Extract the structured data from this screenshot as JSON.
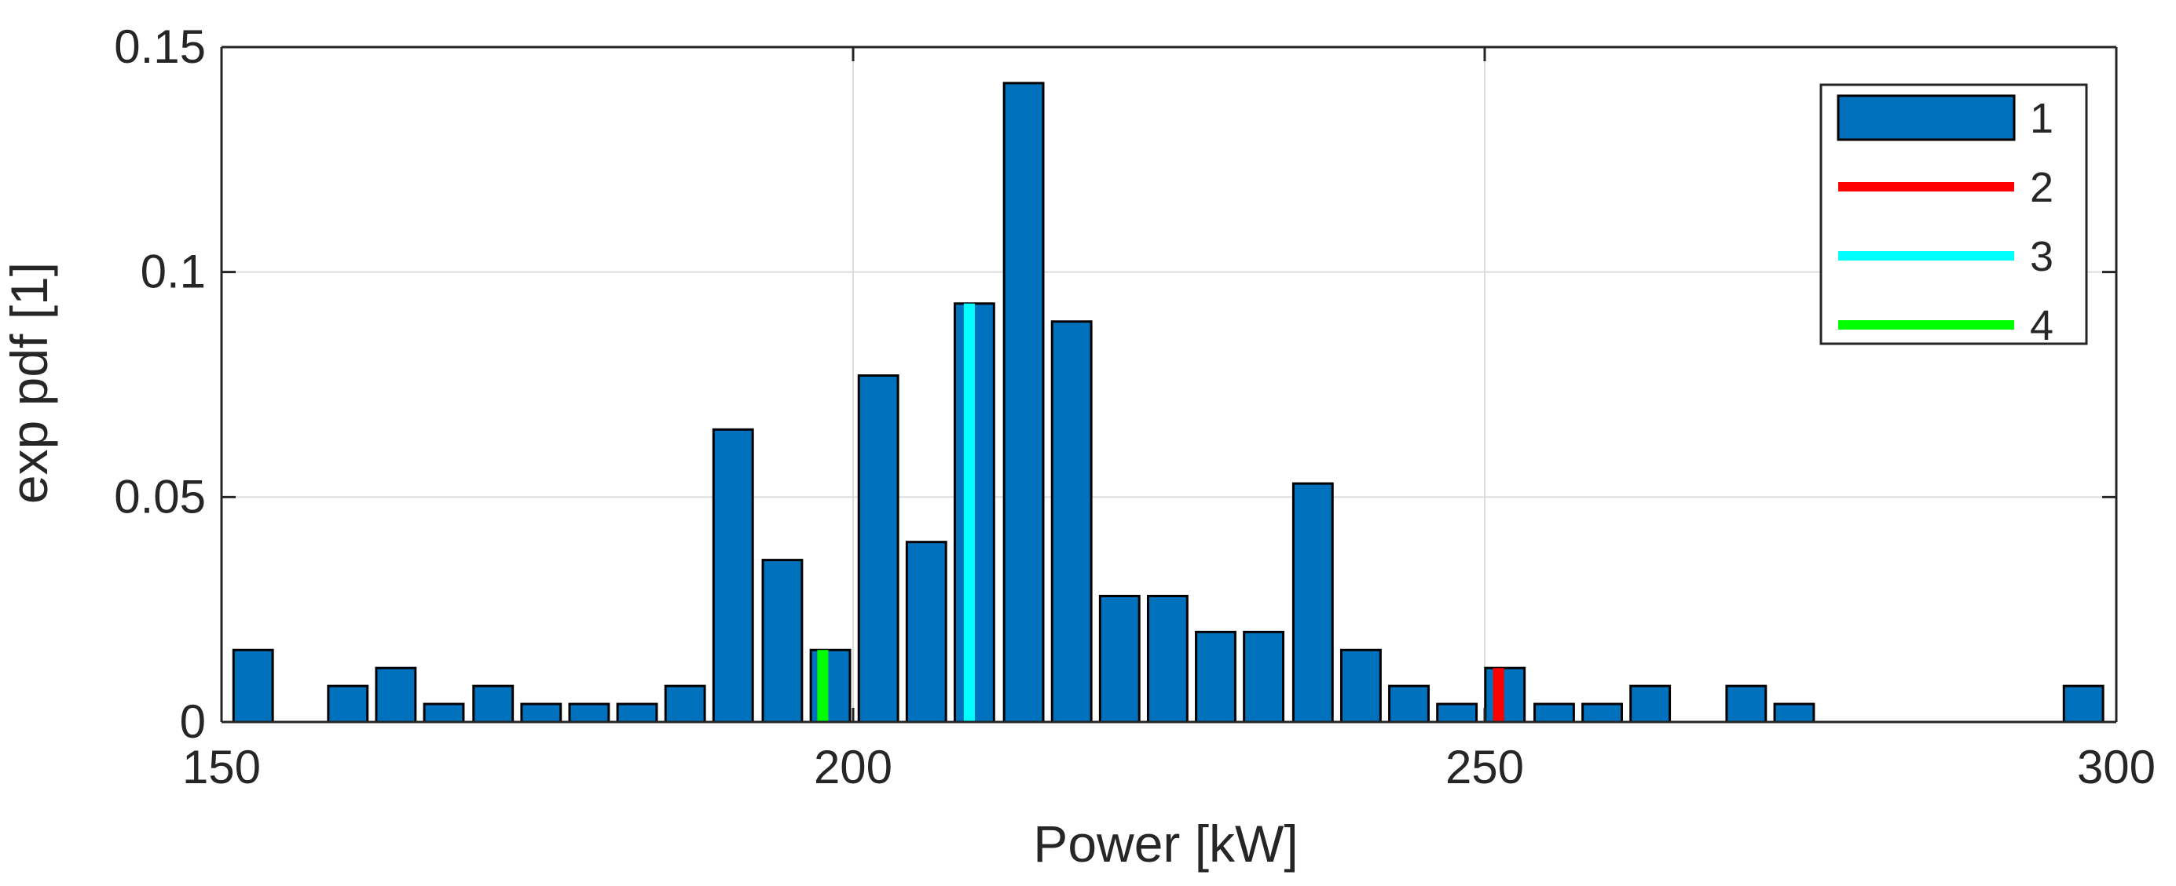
{
  "chart_data": {
    "type": "bar",
    "xlabel": "Power [kW]",
    "ylabel": "exp pdf [1]",
    "xlim": [
      150,
      300
    ],
    "ylim": [
      0,
      0.15
    ],
    "xticks": [
      150,
      200,
      250,
      300
    ],
    "xtick_labels": [
      "150",
      "200",
      "250",
      "300"
    ],
    "yticks": [
      0,
      0.05,
      0.1,
      0.15
    ],
    "ytick_labels": [
      "0",
      "0.05",
      "0.1",
      "0.15"
    ],
    "grid": true,
    "legend_position": "top-right",
    "bar_width": 3.1,
    "series": [
      {
        "name": "1",
        "color": "#0072BD",
        "x": [
          152.5,
          160,
          163.8,
          167.6,
          171.5,
          175.3,
          179.1,
          182.9,
          186.7,
          190.5,
          194.4,
          198.2,
          202,
          205.8,
          209.6,
          213.5,
          217.3,
          221.1,
          224.9,
          228.7,
          232.5,
          236.4,
          240.2,
          244,
          247.8,
          251.6,
          255.5,
          259.3,
          263.1,
          270.7,
          274.5,
          297.4
        ],
        "values": [
          0.016,
          0.008,
          0.012,
          0.004,
          0.008,
          0.004,
          0.004,
          0.004,
          0.008,
          0.065,
          0.036,
          0.016,
          0.077,
          0.04,
          0.093,
          0.142,
          0.089,
          0.028,
          0.028,
          0.02,
          0.02,
          0.053,
          0.016,
          0.008,
          0.004,
          0.012,
          0.004,
          0.004,
          0.008,
          0.008,
          0.004,
          0.008
        ]
      }
    ],
    "vlines": [
      {
        "name": "2",
        "color": "#FF0000",
        "x": 251.1,
        "y_top": 0.012
      },
      {
        "name": "3",
        "color": "#00FFFF",
        "x": 209.2,
        "y_top": 0.093
      },
      {
        "name": "4",
        "color": "#00FF00",
        "x": 197.6,
        "y_top": 0.016
      }
    ]
  }
}
